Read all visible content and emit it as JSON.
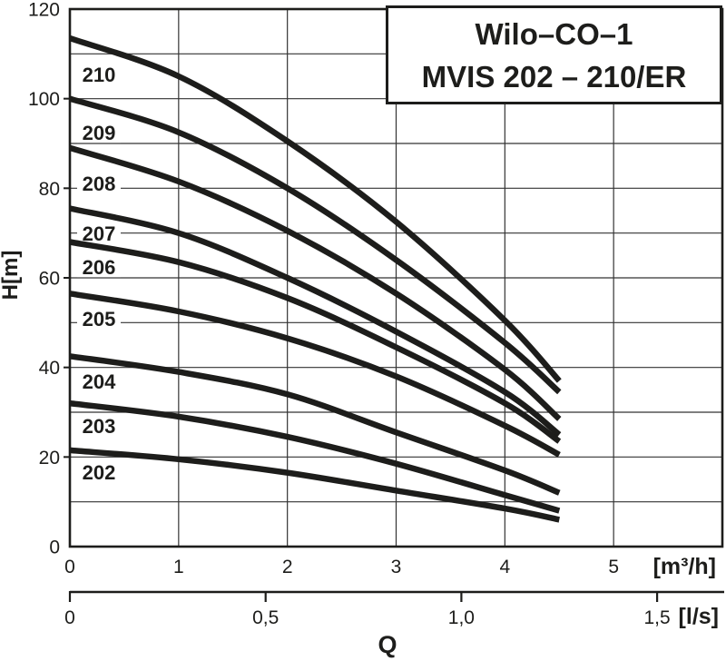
{
  "title": {
    "line1": "Wilo–CO–1",
    "line2": "MVIS 202 – 210/ER"
  },
  "colors": {
    "ink": "#1d1d1b",
    "background": "#ffffff"
  },
  "chart_data": {
    "type": "line",
    "title": "Wilo-CO-1 MVIS 202 - 210/ER",
    "grid": true,
    "y_axis": {
      "label": "H[m]",
      "range": [
        0,
        120
      ],
      "ticks": [
        0,
        20,
        40,
        60,
        80,
        100,
        120
      ],
      "grid_step": 10
    },
    "x_axis_primary": {
      "label": "[m³/h]",
      "range": [
        0,
        6
      ],
      "ticks": [
        0,
        1,
        2,
        3,
        4,
        5
      ]
    },
    "x_axis_secondary": {
      "label": "[l/s]",
      "tick_labels": [
        "0",
        "0,5",
        "1,0",
        "1,5"
      ],
      "tick_values_m3h": [
        0,
        1.8,
        3.6,
        5.4
      ]
    },
    "quantity_label": "Q",
    "x": [
      0,
      1,
      2,
      3,
      4,
      4.5
    ],
    "label_q": 0.267,
    "series": [
      {
        "name": "210",
        "label_h": 105.4,
        "values": [
          113.5,
          105.0,
          90.5,
          72.5,
          50.5,
          37.0
        ]
      },
      {
        "name": "209",
        "label_h": 92.4,
        "values": [
          100.0,
          92.5,
          80.0,
          64.0,
          45.5,
          34.5
        ]
      },
      {
        "name": "208",
        "label_h": 81.1,
        "values": [
          89.0,
          81.5,
          70.5,
          56.5,
          39.5,
          28.5
        ]
      },
      {
        "name": "207",
        "label_h": 69.9,
        "values": [
          75.5,
          70.0,
          60.0,
          48.0,
          34.5,
          25.0
        ]
      },
      {
        "name": "206",
        "label_h": 62.4,
        "values": [
          68.0,
          63.5,
          55.5,
          44.5,
          32.0,
          23.5
        ]
      },
      {
        "name": "205",
        "label_h": 50.9,
        "values": [
          56.5,
          52.5,
          46.5,
          38.0,
          27.0,
          20.5
        ]
      },
      {
        "name": "204",
        "label_h": 36.9,
        "values": [
          42.5,
          39.0,
          34.0,
          25.5,
          17.0,
          12.0
        ]
      },
      {
        "name": "203",
        "label_h": 27.0,
        "values": [
          32.0,
          29.0,
          24.5,
          18.5,
          11.5,
          8.0
        ]
      },
      {
        "name": "202",
        "label_h": 16.6,
        "values": [
          21.5,
          19.5,
          16.5,
          12.5,
          8.5,
          6.0
        ]
      }
    ]
  }
}
